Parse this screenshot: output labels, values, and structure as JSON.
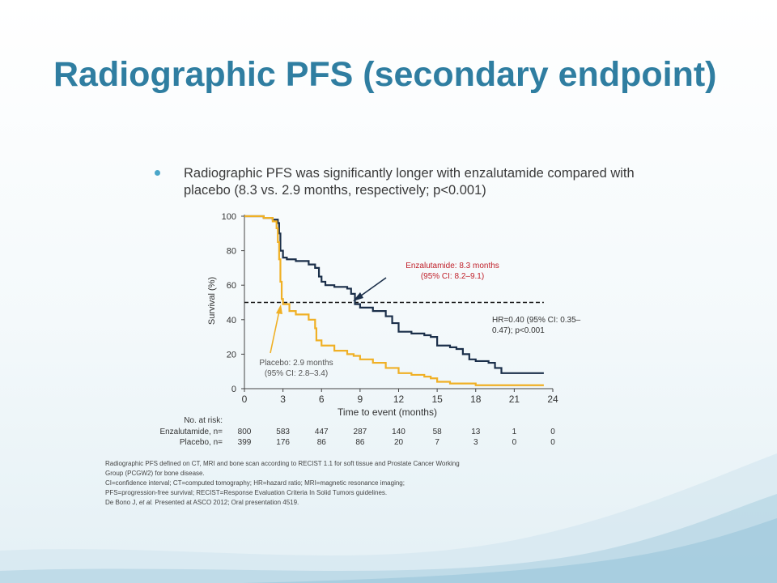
{
  "slide": {
    "title": "Radiographic PFS (secondary endpoint)",
    "bullet": "Radiographic PFS was significantly longer with enzalutamide compared with placebo (8.3 vs. 2.9 months, respectively; p<0.001)"
  },
  "colors": {
    "title": "#2f7ea1",
    "enzalutamide": "#1b2f4a",
    "placebo": "#f0b025",
    "enza_label": "#c0202a",
    "bullet": "#4aa6c9"
  },
  "chart_data": {
    "type": "line",
    "xlabel": "Time to event (months)",
    "ylabel": "Survival (%)",
    "xlim": [
      0,
      24
    ],
    "ylim": [
      0,
      100
    ],
    "xticks": [
      0,
      3,
      6,
      9,
      12,
      15,
      18,
      21,
      24
    ],
    "yticks": [
      0,
      20,
      40,
      60,
      80,
      100
    ],
    "median_line_y": 50,
    "series": [
      {
        "name": "Enzalutamide",
        "color": "#1b2f4a",
        "x": [
          0,
          0.5,
          1.5,
          2.2,
          2.6,
          2.7,
          2.8,
          3.0,
          3.3,
          4.0,
          5.0,
          5.5,
          5.8,
          6.0,
          6.3,
          7.0,
          8.0,
          8.3,
          8.6,
          9.0,
          10.0,
          11.0,
          11.5,
          12.0,
          13.0,
          14.0,
          14.5,
          15.0,
          16.0,
          16.5,
          17.0,
          17.5,
          18.0,
          19.0,
          19.5,
          20.0,
          22.0,
          23.3
        ],
        "y": [
          100,
          100,
          99,
          98,
          96,
          90,
          80,
          76,
          75,
          74,
          72,
          70,
          65,
          62,
          60,
          59,
          58,
          55,
          49,
          47,
          45,
          42,
          38,
          33,
          32,
          31,
          30,
          25,
          24,
          23,
          20,
          17,
          16,
          15,
          12,
          9,
          9,
          9
        ]
      },
      {
        "name": "Placebo",
        "color": "#f0b025",
        "x": [
          0,
          0.5,
          1.5,
          2.2,
          2.5,
          2.6,
          2.7,
          2.8,
          2.9,
          3.0,
          3.5,
          4.0,
          5.0,
          5.5,
          5.6,
          6.0,
          7.0,
          8.0,
          8.5,
          9.0,
          10.0,
          11.0,
          12.0,
          13.0,
          14.0,
          14.5,
          15.0,
          16.0,
          18.0,
          23.3
        ],
        "y": [
          100,
          100,
          99,
          97,
          93,
          85,
          75,
          62,
          52,
          49,
          45,
          43,
          40,
          35,
          28,
          25,
          22,
          20,
          19,
          17,
          15,
          12,
          9,
          8,
          7,
          6,
          4,
          3,
          2,
          2
        ]
      }
    ],
    "annotations": {
      "enzalutamide_median": "Enzalutamide: 8.3 months\n(95% CI: 8.2–9.1)",
      "placebo_median": "Placebo: 2.9 months\n(95% CI: 2.8–3.4)",
      "hazard_ratio": "HR=0.40 (95% CI: 0.35–\n0.47); p<0.001"
    },
    "at_risk": {
      "header": "No. at risk:",
      "rows": [
        {
          "label": "Enzalutamide, n=",
          "values": [
            "800",
            "583",
            "447",
            "287",
            "140",
            "58",
            "13",
            "1",
            "0"
          ]
        },
        {
          "label": "Placebo, n=",
          "values": [
            "399",
            "176",
            "86",
            "86",
            "20",
            "7",
            "3",
            "0",
            "0"
          ]
        }
      ]
    }
  },
  "footnote": {
    "lines": [
      "Radiographic PFS defined on CT, MRI and bone scan according to RECIST 1.1 for soft tissue and Prostate Cancer Working",
      "Group (PCGW2) for bone disease.",
      "CI=confidence interval; CT=computed tomography; HR=hazard ratio; MRI=magnetic resonance imaging;",
      "PFS=progression-free survival; RECIST=Response Evaluation Criteria In Solid Tumors guidelines."
    ],
    "citation_author": "De Bono J,",
    "citation_etal": "et al.",
    "citation_rest": "Presented at ASCO 2012; Oral presentation 4519."
  }
}
